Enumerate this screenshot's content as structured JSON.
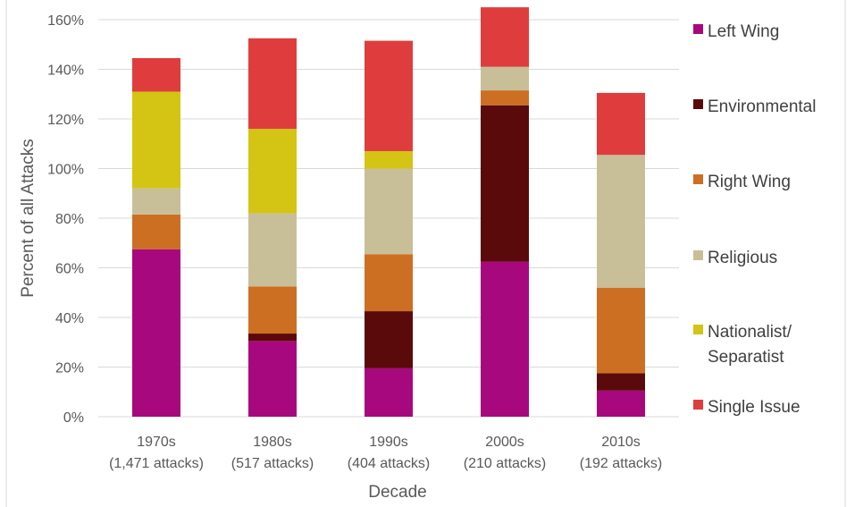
{
  "chart_data": {
    "type": "bar",
    "stacked": true,
    "title": "",
    "xlabel": "Decade",
    "ylabel": "Percent of all Attacks",
    "ylim": [
      0,
      160
    ],
    "yticks": [
      "0%",
      "20%",
      "40%",
      "60%",
      "80%",
      "100%",
      "120%",
      "140%",
      "160%"
    ],
    "categories": [
      [
        "1970s",
        "(1,471 attacks)"
      ],
      [
        "1980s",
        "(517 attacks)"
      ],
      [
        "1990s",
        "(404 attacks)"
      ],
      [
        "2000s",
        "(210 attacks)"
      ],
      [
        "2010s",
        "(192 attacks)"
      ]
    ],
    "grid": true,
    "legend_position": "right",
    "series": [
      {
        "name": "Left Wing",
        "color": "#a8087d",
        "values": [
          67.5,
          30.5,
          19.5,
          62.5,
          10.5
        ]
      },
      {
        "name": "Environmental",
        "color": "#5a0a0a",
        "values": [
          0,
          3,
          23,
          63,
          7
        ]
      },
      {
        "name": "Right Wing",
        "color": "#cd6f23",
        "values": [
          14,
          19,
          23,
          6,
          34.5
        ]
      },
      {
        "name": "Religious",
        "color": "#c8bf99",
        "values": [
          10.5,
          29.5,
          34.5,
          9.5,
          53.5
        ]
      },
      {
        "name": "Nationalist/ Separatist",
        "color": "#d4c413",
        "values": [
          39,
          34,
          7,
          0,
          0
        ]
      },
      {
        "name": "Single Issue",
        "color": "#df3d3d",
        "values": [
          13.5,
          36.5,
          44.5,
          24,
          25
        ]
      }
    ]
  }
}
